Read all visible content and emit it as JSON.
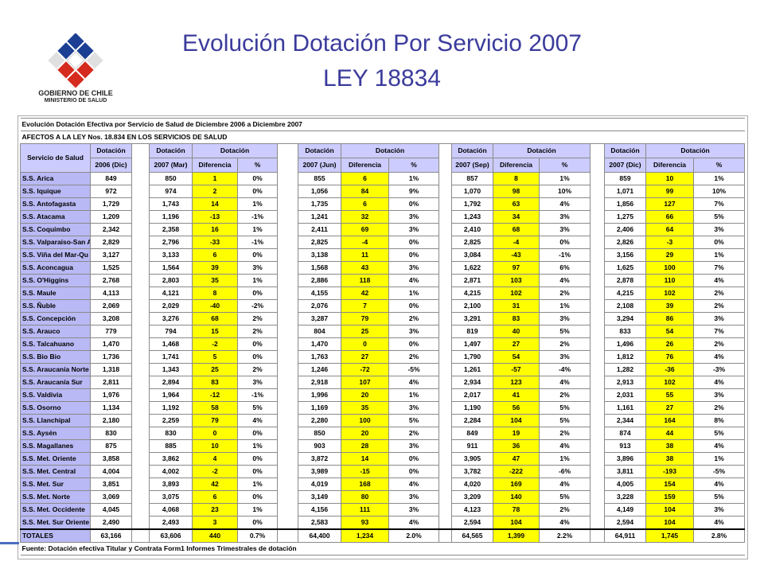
{
  "header": {
    "title": "Evolución Dotación Por Servicio 2007",
    "subtitle": "LEY 18834"
  },
  "logo": {
    "line1": "GOBIERNO DE CHILE",
    "line2": "MINISTERIO DE SALUD"
  },
  "table": {
    "title": "Evolución Dotación Efectiva por Servicio de Salud  de Diciembre 2006 a Diciembre 2007",
    "note": "AFECTOS A LA LEY  Nos. 18.834 EN LOS SERVICIOS DE SALUD",
    "header_top": [
      "Servicio de Salud",
      "Dotación",
      "Dotación",
      "Dotación",
      "Dotación",
      "Dotación",
      "Dotación",
      "Dotación",
      "Dotación",
      "Dotación"
    ],
    "header_bottom": [
      "2006 (Dic)",
      "2007 (Mar)",
      "Diferencia",
      "%",
      "2007 (Jun)",
      "Diferencia",
      "%",
      "2007 (Sep)",
      "Diferencia",
      "%",
      "2007 (Dic)",
      "Diferencia",
      "%"
    ],
    "rows": [
      [
        "S.S. Arica",
        "849",
        "850",
        "1",
        "0%",
        "855",
        "6",
        "1%",
        "857",
        "8",
        "1%",
        "859",
        "10",
        "1%"
      ],
      [
        "S.S. Iquique",
        "972",
        "974",
        "2",
        "0%",
        "1,056",
        "84",
        "9%",
        "1,070",
        "98",
        "10%",
        "1,071",
        "99",
        "10%"
      ],
      [
        "S.S. Antofagasta",
        "1,729",
        "1,743",
        "14",
        "1%",
        "1,735",
        "6",
        "0%",
        "1,792",
        "63",
        "4%",
        "1,856",
        "127",
        "7%"
      ],
      [
        "S.S. Atacama",
        "1,209",
        "1,196",
        "-13",
        "-1%",
        "1,241",
        "32",
        "3%",
        "1,243",
        "34",
        "3%",
        "1,275",
        "66",
        "5%"
      ],
      [
        "S.S. Coquimbo",
        "2,342",
        "2,358",
        "16",
        "1%",
        "2,411",
        "69",
        "3%",
        "2,410",
        "68",
        "3%",
        "2,406",
        "64",
        "3%"
      ],
      [
        "S.S. Valparaíso-San A",
        "2,829",
        "2,796",
        "-33",
        "-1%",
        "2,825",
        "-4",
        "0%",
        "2,825",
        "-4",
        "0%",
        "2,826",
        "-3",
        "0%"
      ],
      [
        "S.S. Viña del Mar-Qu",
        "3,127",
        "3,133",
        "6",
        "0%",
        "3,138",
        "11",
        "0%",
        "3,084",
        "-43",
        "-1%",
        "3,156",
        "29",
        "1%"
      ],
      [
        "S.S. Aconcagua",
        "1,525",
        "1,564",
        "39",
        "3%",
        "1,568",
        "43",
        "3%",
        "1,622",
        "97",
        "6%",
        "1,625",
        "100",
        "7%"
      ],
      [
        "S.S. O'Higgins",
        "2,768",
        "2,803",
        "35",
        "1%",
        "2,886",
        "118",
        "4%",
        "2,871",
        "103",
        "4%",
        "2,878",
        "110",
        "4%"
      ],
      [
        "S.S. Maule",
        "4,113",
        "4,121",
        "8",
        "0%",
        "4,155",
        "42",
        "1%",
        "4,215",
        "102",
        "2%",
        "4,215",
        "102",
        "2%"
      ],
      [
        "S.S. Ñuble",
        "2,069",
        "2,029",
        "-40",
        "-2%",
        "2,076",
        "7",
        "0%",
        "2,100",
        "31",
        "1%",
        "2,108",
        "39",
        "2%"
      ],
      [
        "S.S. Concepción",
        "3,208",
        "3,276",
        "68",
        "2%",
        "3,287",
        "79",
        "2%",
        "3,291",
        "83",
        "3%",
        "3,294",
        "86",
        "3%"
      ],
      [
        "S.S. Arauco",
        "779",
        "794",
        "15",
        "2%",
        "804",
        "25",
        "3%",
        "819",
        "40",
        "5%",
        "833",
        "54",
        "7%"
      ],
      [
        "S.S. Talcahuano",
        "1,470",
        "1,468",
        "-2",
        "0%",
        "1,470",
        "0",
        "0%",
        "1,497",
        "27",
        "2%",
        "1,496",
        "26",
        "2%"
      ],
      [
        "S.S. Bio Bio",
        "1,736",
        "1,741",
        "5",
        "0%",
        "1,763",
        "27",
        "2%",
        "1,790",
        "54",
        "3%",
        "1,812",
        "76",
        "4%"
      ],
      [
        "S.S. Araucanía Norte",
        "1,318",
        "1,343",
        "25",
        "2%",
        "1,246",
        "-72",
        "-5%",
        "1,261",
        "-57",
        "-4%",
        "1,282",
        "-36",
        "-3%"
      ],
      [
        "S.S. Araucanía Sur",
        "2,811",
        "2,894",
        "83",
        "3%",
        "2,918",
        "107",
        "4%",
        "2,934",
        "123",
        "4%",
        "2,913",
        "102",
        "4%"
      ],
      [
        "S.S. Valdivia",
        "1,976",
        "1,964",
        "-12",
        "-1%",
        "1,996",
        "20",
        "1%",
        "2,017",
        "41",
        "2%",
        "2,031",
        "55",
        "3%"
      ],
      [
        "S.S. Osorno",
        "1,134",
        "1,192",
        "58",
        "5%",
        "1,169",
        "35",
        "3%",
        "1,190",
        "56",
        "5%",
        "1,161",
        "27",
        "2%"
      ],
      [
        "S.S. Llanchipal",
        "2,180",
        "2,259",
        "79",
        "4%",
        "2,280",
        "100",
        "5%",
        "2,284",
        "104",
        "5%",
        "2,344",
        "164",
        "8%"
      ],
      [
        "S.S. Aysén",
        "830",
        "830",
        "0",
        "0%",
        "850",
        "20",
        "2%",
        "849",
        "19",
        "2%",
        "874",
        "44",
        "5%"
      ],
      [
        "S.S. Magallanes",
        "875",
        "885",
        "10",
        "1%",
        "903",
        "28",
        "3%",
        "911",
        "36",
        "4%",
        "913",
        "38",
        "4%"
      ],
      [
        "S.S. Met. Oriente",
        "3,858",
        "3,862",
        "4",
        "0%",
        "3,872",
        "14",
        "0%",
        "3,905",
        "47",
        "1%",
        "3,896",
        "38",
        "1%"
      ],
      [
        "S.S. Met. Central",
        "4,004",
        "4,002",
        "-2",
        "0%",
        "3,989",
        "-15",
        "0%",
        "3,782",
        "-222",
        "-6%",
        "3,811",
        "-193",
        "-5%"
      ],
      [
        "S.S. Met. Sur",
        "3,851",
        "3,893",
        "42",
        "1%",
        "4,019",
        "168",
        "4%",
        "4,020",
        "169",
        "4%",
        "4,005",
        "154",
        "4%"
      ],
      [
        "S.S. Met. Norte",
        "3,069",
        "3,075",
        "6",
        "0%",
        "3,149",
        "80",
        "3%",
        "3,209",
        "140",
        "5%",
        "3,228",
        "159",
        "5%"
      ],
      [
        "S.S. Met. Occidente",
        "4,045",
        "4,068",
        "23",
        "1%",
        "4,156",
        "111",
        "3%",
        "4,123",
        "78",
        "2%",
        "4,149",
        "104",
        "3%"
      ],
      [
        "S.S. Met. Sur Oriente",
        "2,490",
        "2,493",
        "3",
        "0%",
        "2,583",
        "93",
        "4%",
        "2,594",
        "104",
        "4%",
        "2,594",
        "104",
        "4%"
      ]
    ],
    "totals": [
      "TOTALES",
      "63,166",
      "63,606",
      "440",
      "0.7%",
      "64,400",
      "1,234",
      "2.0%",
      "64,565",
      "1,399",
      "2.2%",
      "64,911",
      "1,745",
      "2.8%"
    ],
    "source": "Fuente: Dotación efectiva Titular y Contrata Form1 Informes Trimestrales de dotación"
  }
}
